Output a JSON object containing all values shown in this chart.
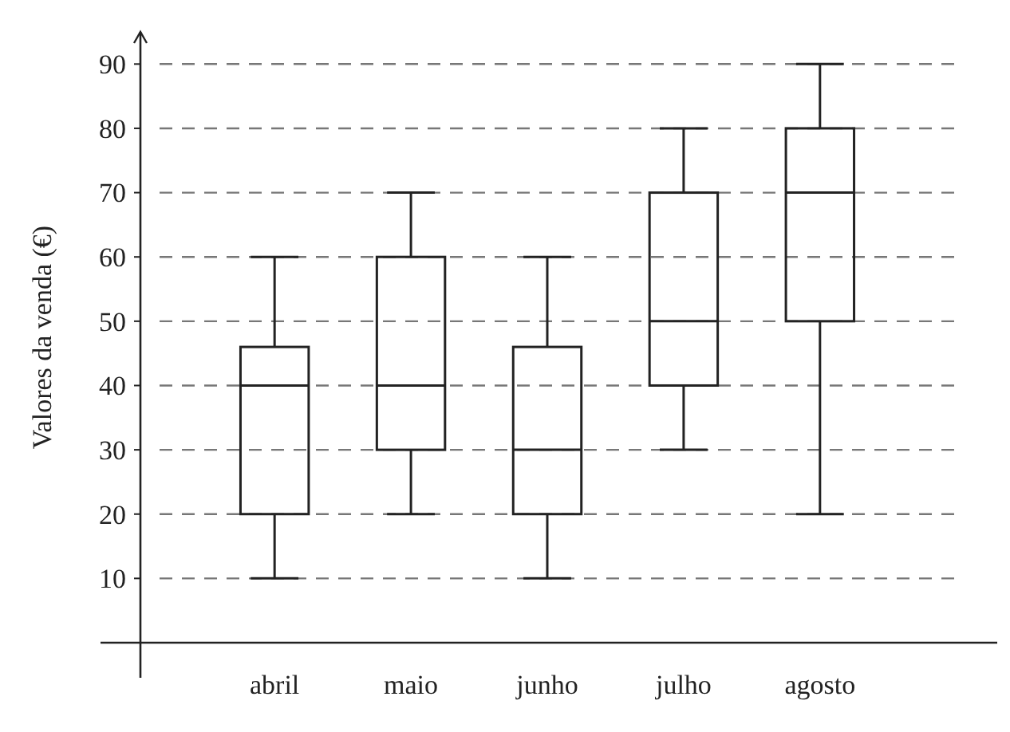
{
  "chart_data": {
    "type": "box",
    "ylabel": "Valores da venda (€)",
    "categories": [
      "abril",
      "maio",
      "junho",
      "julho",
      "agosto"
    ],
    "boxes": [
      {
        "low": 10,
        "q1": 20,
        "median": 40,
        "q3": 46,
        "high": 60
      },
      {
        "low": 20,
        "q1": 30,
        "median": 40,
        "q3": 60,
        "high": 70
      },
      {
        "low": 10,
        "q1": 20,
        "median": 30,
        "q3": 46,
        "high": 60
      },
      {
        "low": 30,
        "q1": 40,
        "median": 50,
        "q3": 70,
        "high": 80
      },
      {
        "low": 20,
        "q1": 50,
        "median": 70,
        "q3": 80,
        "high": 90
      }
    ],
    "color": "#222222",
    "ylim": [
      0,
      95
    ],
    "yticks": [
      10,
      20,
      30,
      40,
      50,
      60,
      70,
      80,
      90
    ],
    "grid": "y"
  }
}
